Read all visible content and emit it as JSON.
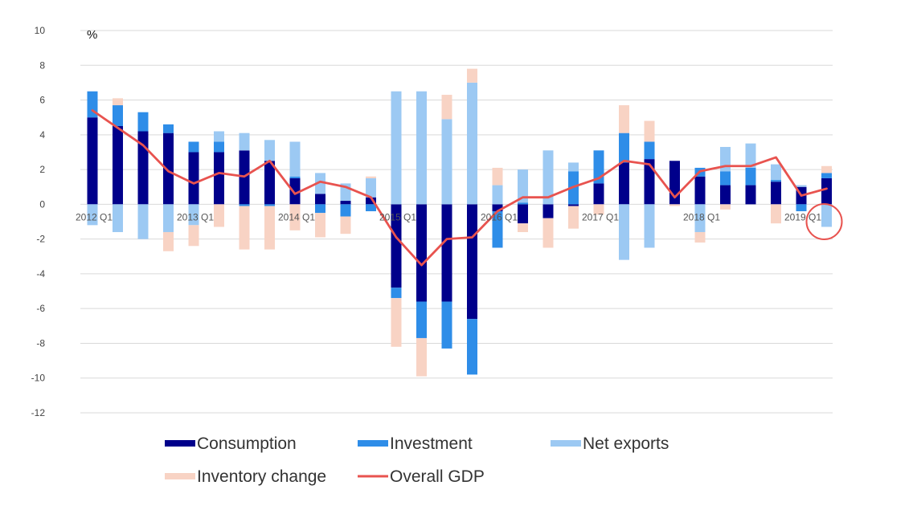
{
  "chart_data": {
    "type": "bar",
    "stacked": true,
    "unit_label": "%",
    "ylim": [
      -12,
      10
    ],
    "yticks": [
      10,
      8,
      6,
      4,
      2,
      0,
      -2,
      -4,
      -6,
      -8,
      -10,
      -12
    ],
    "grid": true,
    "legend_position": "bottom",
    "categories": [
      "2012 Q1",
      "2012 Q2",
      "2012 Q3",
      "2012 Q4",
      "2013 Q1",
      "2013 Q2",
      "2013 Q3",
      "2013 Q4",
      "2014 Q1",
      "2014 Q2",
      "2014 Q3",
      "2014 Q4",
      "2015 Q1",
      "2015 Q2",
      "2015 Q3",
      "2015 Q4",
      "2016 Q1",
      "2016 Q2",
      "2016 Q3",
      "2016 Q4",
      "2017 Q1",
      "2017 Q2",
      "2017 Q3",
      "2017 Q4",
      "2018 Q1",
      "2018 Q2",
      "2018 Q3",
      "2018 Q4",
      "2019 Q1",
      "2019 Q2"
    ],
    "category_tick_labels": [
      {
        "index": 0,
        "text": "2012 Q1"
      },
      {
        "index": 4,
        "text": "2013 Q1"
      },
      {
        "index": 8,
        "text": "2014 Q1"
      },
      {
        "index": 12,
        "text": "2015 Q1"
      },
      {
        "index": 16,
        "text": "2016 Q1"
      },
      {
        "index": 20,
        "text": "2017 Q1"
      },
      {
        "index": 24,
        "text": "2018 Q1"
      },
      {
        "index": 28,
        "text": "2019 Q1"
      }
    ],
    "series": [
      {
        "name": "Consumption",
        "color": "#00008b",
        "values": [
          5.0,
          4.5,
          4.2,
          4.1,
          3.0,
          3.0,
          3.1,
          2.5,
          1.5,
          0.6,
          0.2,
          0.4,
          -4.8,
          -5.6,
          -5.6,
          -6.6,
          -0.4,
          -1.1,
          -0.8,
          -0.1,
          1.2,
          2.4,
          2.6,
          2.5,
          1.6,
          1.1,
          1.1,
          1.3,
          1.0,
          1.5
        ]
      },
      {
        "name": "Investment",
        "color": "#2e8de8",
        "values": [
          1.5,
          1.2,
          1.1,
          0.5,
          0.6,
          0.6,
          -0.1,
          -0.1,
          0.1,
          -0.5,
          -0.7,
          -0.4,
          -0.6,
          -2.1,
          -2.7,
          -3.2,
          -2.1,
          0.1,
          0.0,
          1.9,
          1.9,
          1.7,
          1.0,
          0.0,
          0.5,
          0.8,
          1.0,
          0.1,
          -0.4,
          0.3
        ]
      },
      {
        "name": "Net exports",
        "color": "#9cc9f3",
        "values": [
          -1.2,
          -1.6,
          -2.0,
          -1.6,
          -1.2,
          0.6,
          1.0,
          1.2,
          2.0,
          1.2,
          1.0,
          1.1,
          6.5,
          6.5,
          4.9,
          7.0,
          1.1,
          1.9,
          3.1,
          0.5,
          0.0,
          -3.2,
          -2.5,
          0.0,
          -1.6,
          1.4,
          1.4,
          0.9,
          0.1,
          -1.3
        ]
      },
      {
        "name": "Inventory change",
        "color": "#f8d3c4",
        "values": [
          0.0,
          0.4,
          0.0,
          -1.1,
          -1.2,
          -1.3,
          -2.5,
          -2.5,
          -1.5,
          -1.4,
          -1.0,
          0.1,
          -2.8,
          -2.2,
          1.4,
          0.8,
          1.0,
          -0.5,
          -1.7,
          -1.3,
          -0.6,
          1.6,
          1.2,
          -0.1,
          -0.6,
          -0.3,
          0.0,
          -1.1,
          0.0,
          0.4
        ]
      },
      {
        "name": "Overall GDP",
        "type": "line",
        "color": "#e8534f",
        "values": [
          5.4,
          4.4,
          3.4,
          1.9,
          1.2,
          1.8,
          1.6,
          2.5,
          0.6,
          1.3,
          1.0,
          0.4,
          -1.9,
          -3.5,
          -2.0,
          -1.9,
          -0.4,
          0.4,
          0.4,
          1.0,
          1.5,
          2.5,
          2.3,
          0.4,
          1.9,
          2.2,
          2.2,
          2.7,
          0.5,
          0.9
        ]
      }
    ],
    "annotations": [
      {
        "type": "circle",
        "target_category": "2019 Q2",
        "color": "#e8534f"
      }
    ]
  }
}
